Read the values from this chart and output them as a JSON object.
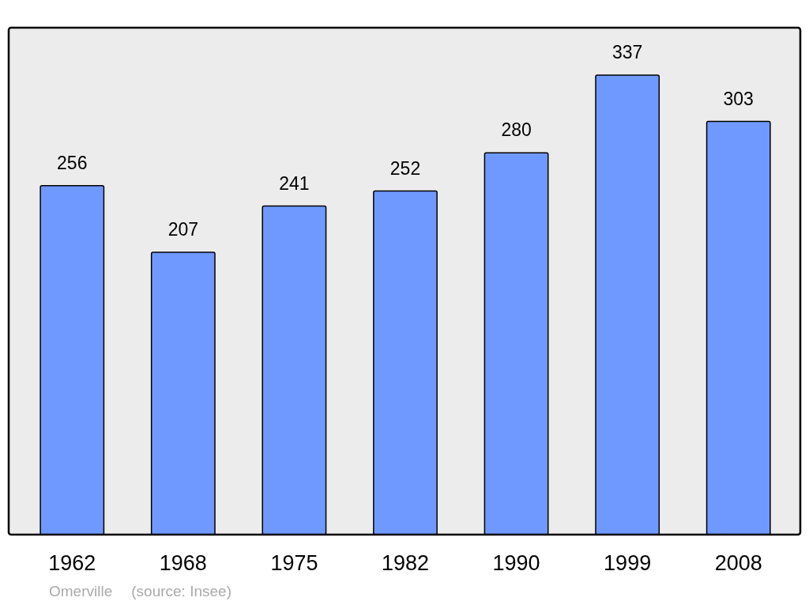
{
  "chart_data": {
    "type": "bar",
    "categories": [
      "1962",
      "1968",
      "1975",
      "1982",
      "1990",
      "1999",
      "2008"
    ],
    "values": [
      256,
      207,
      241,
      252,
      280,
      337,
      303
    ],
    "color": "#7099ff",
    "data_labels": true,
    "annotations": [
      "Omerville",
      "(source: Insee)"
    ]
  }
}
